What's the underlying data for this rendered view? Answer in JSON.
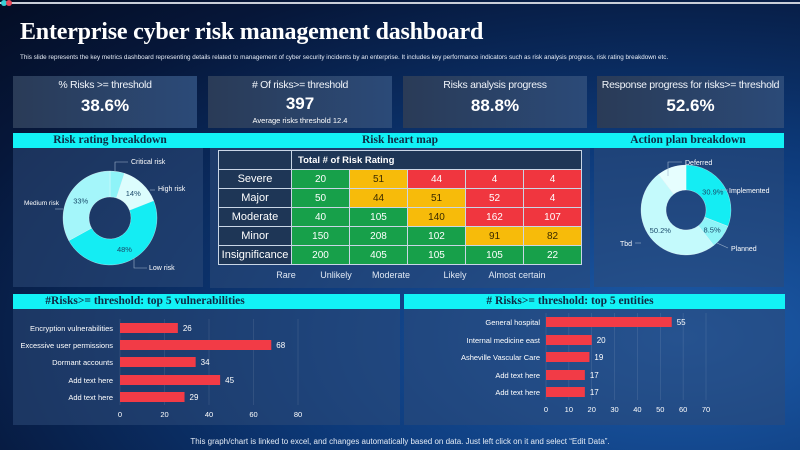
{
  "title": "Enterprise cyber risk management dashboard",
  "subtitle": "This slide represents the key metrics dashboard representing details related to management  of cyber security incidents by an enterprise. It includes key performance indicators such as risk analysis progress, risk rating breakdown etc.",
  "kpis": [
    {
      "label": "% Risks >= threshold",
      "value": "38.6%"
    },
    {
      "label": "# Of risks>= threshold",
      "value": "397",
      "sub": "Average risks threshold 12.4"
    },
    {
      "label": "Risks analysis progress",
      "value": "88.8%"
    },
    {
      "label": "Response progress for risks>= threshold",
      "value": "52.6%"
    }
  ],
  "sections": {
    "risk_rating": "Risk rating breakdown",
    "heat_map": "Risk heart map",
    "action_plan": "Action plan breakdown",
    "vulnerabilities": "#Risks>= threshold: top 5 vulnerabilities",
    "entities": "# Risks>= threshold: top 5 entities"
  },
  "colors": {
    "accent": "#12f2f6",
    "bar": "#f23b46",
    "green": "#17a04a",
    "yellow": "#f7bb0a",
    "red": "#f0363f"
  },
  "heat_map": {
    "header": "Total # of Risk Rating",
    "rows": [
      {
        "label": "Severe",
        "values": [
          "20",
          "51",
          "44",
          "4",
          "4"
        ],
        "levels": [
          "g",
          "y",
          "r",
          "r",
          "r"
        ]
      },
      {
        "label": "Major",
        "values": [
          "50",
          "44",
          "51",
          "52",
          "4"
        ],
        "levels": [
          "g",
          "y",
          "y",
          "r",
          "r"
        ]
      },
      {
        "label": "Moderate",
        "values": [
          "40",
          "105",
          "140",
          "162",
          "107"
        ],
        "levels": [
          "g",
          "g",
          "y",
          "r",
          "r"
        ]
      },
      {
        "label": "Minor",
        "values": [
          "150",
          "208",
          "102",
          "91",
          "82"
        ],
        "levels": [
          "g",
          "g",
          "g",
          "y",
          "y"
        ]
      },
      {
        "label": "Insignificance",
        "values": [
          "200",
          "405",
          "105",
          "105",
          "22"
        ],
        "levels": [
          "g",
          "g",
          "g",
          "g",
          "g"
        ]
      }
    ],
    "columns": [
      "Rare",
      "Unlikely",
      "Moderate",
      "Likely",
      "Almost certain"
    ]
  },
  "chart_data": [
    {
      "type": "pie",
      "title": "Risk rating breakdown",
      "slices": [
        {
          "label": "Critical risk",
          "value": 5,
          "data_label": "",
          "color": "#8ef4f8"
        },
        {
          "label": "High risk",
          "value": 14,
          "data_label": "14%",
          "color": "#dcfdfd"
        },
        {
          "label": "Low risk",
          "value": 48,
          "data_label": "48%",
          "color": "#14edf3"
        },
        {
          "label": "Medium risk",
          "value": 33,
          "data_label": "33%",
          "color": "#a4f6fa"
        }
      ]
    },
    {
      "type": "pie",
      "title": "Action plan breakdown",
      "slices": [
        {
          "label": "Implemented",
          "value": 30.9,
          "data_label": "30.9%",
          "color": "#14edf3"
        },
        {
          "label": "Planned",
          "value": 8.5,
          "data_label": "8.5%",
          "color": "#8ef4f8"
        },
        {
          "label": "Tbd",
          "value": 50.2,
          "data_label": "50.2%",
          "color": "#c4fafc"
        },
        {
          "label": "Deferred",
          "value": 10.4,
          "data_label": "",
          "color": "#e6fefe"
        }
      ]
    },
    {
      "type": "bar",
      "orientation": "horizontal",
      "title": "#Risks>= threshold: top 5 vulnerabilities",
      "categories": [
        "Encryption vulnerabilities",
        "Excessive user permissions",
        "Dormant accounts",
        "Add text here",
        "Add text here"
      ],
      "values": [
        26,
        68,
        34,
        45,
        29
      ],
      "xlim": [
        0,
        80
      ],
      "ticks": [
        0,
        20,
        40,
        60,
        80
      ],
      "grid": true
    },
    {
      "type": "bar",
      "orientation": "horizontal",
      "title": "# Risks>= threshold: top 5 entities",
      "categories": [
        "General hospital",
        "Internal medicine east",
        "Asheville Vascular Care",
        "Add text here",
        "Add text here"
      ],
      "values": [
        55,
        20,
        19,
        17,
        17
      ],
      "xlim": [
        0,
        70
      ],
      "ticks": [
        0,
        10,
        20,
        30,
        40,
        50,
        60,
        70
      ],
      "grid": true
    }
  ],
  "footer": "This graph/chart is linked to excel, and changes automatically based on data. Just left click on it and select “Edit Data”."
}
